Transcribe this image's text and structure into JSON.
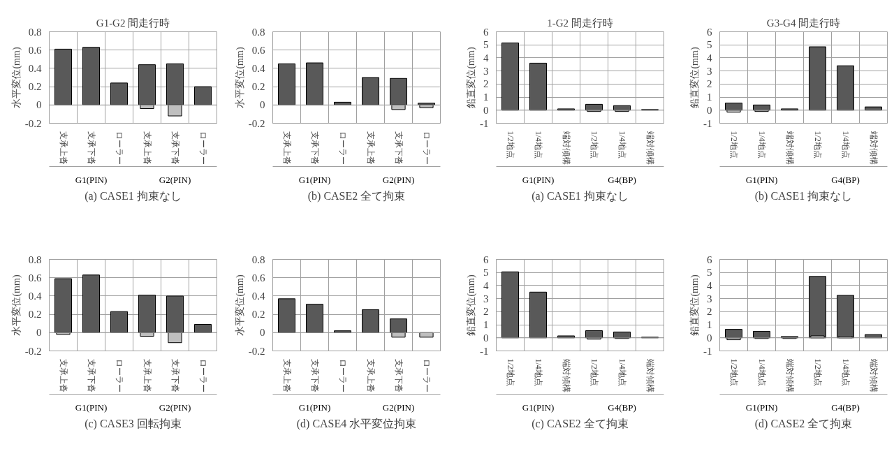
{
  "chart_data": [
    {
      "type": "bar",
      "title": "G1-G2 間走行時",
      "xlabel": "(a) CASE1 拘束なし",
      "ylabel": "水平変位(mm)",
      "categories": [
        "支承上沓",
        "支承下沓",
        "ローラー",
        "支承上沓",
        "支承下沓",
        "ローラー"
      ],
      "annotations": [
        "G1(PIN)",
        "G2(PIN)"
      ],
      "ylim": [
        -0.2,
        0.8
      ],
      "yticks": [
        -0.2,
        0,
        0.2,
        0.4,
        0.6,
        0.8
      ],
      "grid": true,
      "series": [
        {
          "color": "#595959",
          "values": [
            0.61,
            0.63,
            0.24,
            0.44,
            0.45,
            0.2
          ]
        },
        {
          "color": "#bfbfbf",
          "values": [
            null,
            null,
            null,
            -0.04,
            -0.12,
            null
          ]
        }
      ]
    },
    {
      "type": "bar",
      "xlabel": "(b) CASE2 全て拘束",
      "ylabel": "水平変位(mm)",
      "categories": [
        "支承上沓",
        "支承下沓",
        "ローラー",
        "支承上沓",
        "支承下沓",
        "ローラー"
      ],
      "annotations": [
        "G1(PIN)",
        "G2(PIN)"
      ],
      "ylim": [
        -0.2,
        0.8
      ],
      "yticks": [
        -0.2,
        0,
        0.2,
        0.4,
        0.6,
        0.8
      ],
      "grid": true,
      "series": [
        {
          "color": "#595959",
          "values": [
            0.45,
            0.46,
            0.03,
            0.3,
            0.29,
            0.02
          ]
        },
        {
          "color": "#bfbfbf",
          "values": [
            null,
            null,
            null,
            null,
            -0.05,
            -0.03
          ]
        }
      ]
    },
    {
      "type": "bar",
      "title": "1-G2 間走行時",
      "xlabel": "(a) CASE1 拘束なし",
      "ylabel": "鉛直変位(mm)",
      "categories": [
        "1/2地点",
        "1/4地点",
        "端対傾構",
        "1/2地点",
        "1/4地点",
        "端対傾構"
      ],
      "annotations": [
        "G1(PIN)",
        "G4(BP)"
      ],
      "ylim": [
        -1,
        6
      ],
      "yticks": [
        -1,
        0,
        1,
        2,
        3,
        4,
        5,
        6
      ],
      "grid": true,
      "series": [
        {
          "color": "#595959",
          "values": [
            5.15,
            3.6,
            0.1,
            0.45,
            0.35,
            0.05
          ]
        },
        {
          "color": "#bfbfbf",
          "values": [
            null,
            null,
            null,
            -0.1,
            -0.1,
            null
          ]
        }
      ]
    },
    {
      "type": "bar",
      "title": "G3-G4 間走行時",
      "xlabel": "(b) CASE1 拘束なし",
      "ylabel": "鉛直変位(mm)",
      "categories": [
        "1/2地点",
        "1/4地点",
        "端対傾構",
        "1/2地点",
        "1/4地点",
        "端対傾構"
      ],
      "annotations": [
        "G1(PIN)",
        "G4(BP)"
      ],
      "ylim": [
        -1,
        6
      ],
      "yticks": [
        -1,
        0,
        1,
        2,
        3,
        4,
        5,
        6
      ],
      "grid": true,
      "series": [
        {
          "color": "#595959",
          "values": [
            0.55,
            0.4,
            0.1,
            4.85,
            3.4,
            0.25
          ]
        },
        {
          "color": "#bfbfbf",
          "values": [
            -0.15,
            -0.1,
            null,
            null,
            null,
            null
          ]
        }
      ]
    },
    {
      "type": "bar",
      "xlabel": "(c) CASE3 回転拘束",
      "ylabel": "水平変位(mm)",
      "categories": [
        "支承上沓",
        "支承下沓",
        "ローラー",
        "支承上沓",
        "支承下沓",
        "ローラー"
      ],
      "annotations": [
        "G1(PIN)",
        "G2(PIN)"
      ],
      "ylim": [
        -0.2,
        0.8
      ],
      "yticks": [
        -0.2,
        0,
        0.2,
        0.4,
        0.6,
        0.8
      ],
      "grid": true,
      "series": [
        {
          "color": "#595959",
          "values": [
            0.59,
            0.63,
            0.23,
            0.41,
            0.4,
            0.09
          ]
        },
        {
          "color": "#bfbfbf",
          "values": [
            -0.02,
            null,
            null,
            -0.04,
            -0.11,
            null
          ]
        }
      ]
    },
    {
      "type": "bar",
      "xlabel": "(d) CASE4 水平変位拘束",
      "ylabel": "水平変位(mm)",
      "categories": [
        "支承上沓",
        "支承下沓",
        "ローラー",
        "支承上沓",
        "支承下沓",
        "ローラー"
      ],
      "annotations": [
        "G1(PIN)",
        "G2(PIN)"
      ],
      "ylim": [
        -0.2,
        0.8
      ],
      "yticks": [
        -0.2,
        0,
        0.2,
        0.4,
        0.6,
        0.8
      ],
      "grid": true,
      "series": [
        {
          "color": "#595959",
          "values": [
            0.37,
            0.31,
            0.02,
            0.25,
            0.15,
            null
          ]
        },
        {
          "color": "#bfbfbf",
          "values": [
            null,
            null,
            null,
            null,
            -0.05,
            -0.05
          ]
        }
      ]
    },
    {
      "type": "bar",
      "xlabel": "(c) CASE2 全て拘束",
      "ylabel": "鉛直変位(mm)",
      "categories": [
        "1/2地点",
        "1/4地点",
        "端対傾構",
        "1/2地点",
        "1/4地点",
        "端対傾構"
      ],
      "annotations": [
        "G1(PIN)",
        "G4(BP)"
      ],
      "ylim": [
        -1,
        6
      ],
      "yticks": [
        -1,
        0,
        1,
        2,
        3,
        4,
        5,
        6
      ],
      "grid": true,
      "series": [
        {
          "color": "#595959",
          "values": [
            5.05,
            3.5,
            0.15,
            0.55,
            0.45,
            0.05
          ]
        },
        {
          "color": "#bfbfbf",
          "values": [
            null,
            null,
            null,
            -0.1,
            -0.05,
            null
          ]
        }
      ]
    },
    {
      "type": "bar",
      "xlabel": "(d) CASE2 全て拘束",
      "ylabel": "鉛直変位(mm)",
      "categories": [
        "1/2地点",
        "1/4地点",
        "端対傾構",
        "1/2地点",
        "1/4地点",
        "端対傾構"
      ],
      "annotations": [
        "G1(PIN)",
        "G4(BP)"
      ],
      "ylim": [
        -1,
        6
      ],
      "yticks": [
        -1,
        0,
        1,
        2,
        3,
        4,
        5,
        6
      ],
      "grid": true,
      "series": [
        {
          "color": "#595959",
          "values": [
            0.65,
            0.5,
            0.1,
            4.7,
            3.25,
            0.25
          ]
        },
        {
          "color": "#bfbfbf",
          "values": [
            -0.15,
            -0.05,
            -0.05,
            0.15,
            0.12,
            null
          ]
        }
      ]
    }
  ]
}
